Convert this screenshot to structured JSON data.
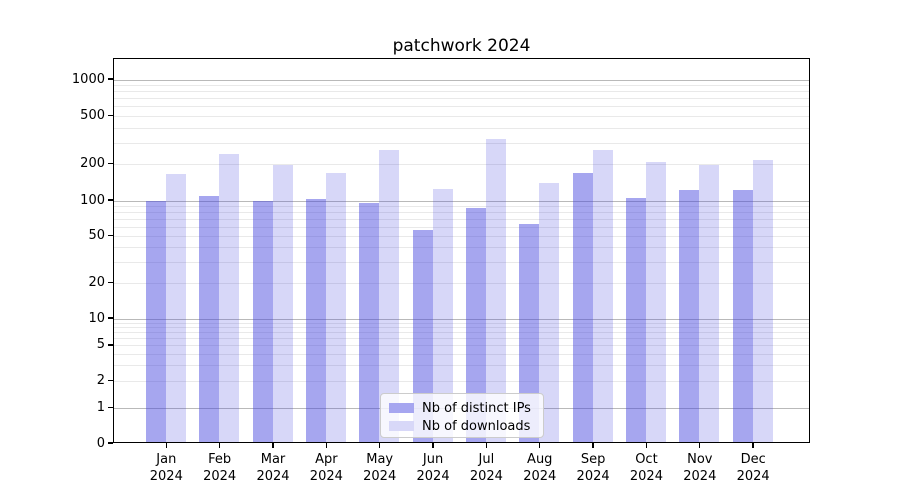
{
  "title": "patchwork 2024",
  "chart_data": {
    "type": "bar",
    "title": "patchwork 2024",
    "categories": [
      "Jan 2024",
      "Feb 2024",
      "Mar 2024",
      "Apr 2024",
      "May 2024",
      "Jun 2024",
      "Jul 2024",
      "Aug 2024",
      "Sep 2024",
      "Oct 2024",
      "Nov 2024",
      "Dec 2024"
    ],
    "series": [
      {
        "name": "Nb of distinct IPs",
        "values": [
          100,
          109,
          100,
          103,
          95,
          56,
          86,
          63,
          168,
          105,
          122,
          122
        ],
        "bar_rgba": "rgba(68,68,221,0.48)",
        "legend_hex": "#a6a6f0"
      },
      {
        "name": "Nb of downloads",
        "values": [
          167,
          243,
          195,
          168,
          260,
          125,
          320,
          140,
          260,
          207,
          197,
          218
        ],
        "bar_rgba": "rgba(68,68,221,0.21)",
        "legend_hex": "#d8d8f8"
      }
    ],
    "xlabel": "",
    "ylabel": "",
    "yscale": "symlog",
    "y_ticks": [
      0,
      1,
      2,
      5,
      10,
      20,
      50,
      100,
      200,
      500,
      1000
    ],
    "y_major_gridlines": [
      1,
      10,
      100,
      1000
    ],
    "ylim": [
      0,
      1500
    ],
    "grid": "on",
    "legend_position": "lower center",
    "colors": {
      "major_grid": "#b9b9b9",
      "minor_grid": "#e9e9e9",
      "axis": "#000000"
    }
  }
}
